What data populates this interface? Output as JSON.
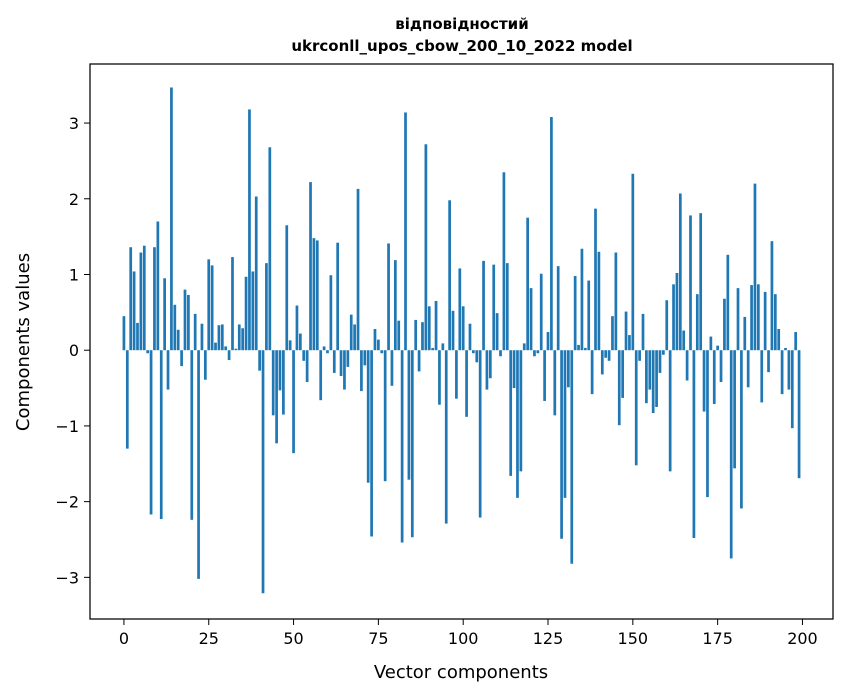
{
  "chart_data": {
    "type": "bar",
    "title_line1": "відповідностий",
    "title_line2": "ukrconll_upos_cbow_200_10_2022 model",
    "xlabel": "Vector components",
    "ylabel": "Components values",
    "xlim": [
      -10,
      209
    ],
    "ylim": [
      -3.55,
      3.78
    ],
    "xticks": [
      0,
      25,
      50,
      75,
      100,
      125,
      150,
      175,
      200
    ],
    "yticks": [
      -3,
      -2,
      -1,
      0,
      1,
      2,
      3
    ],
    "xtick_labels": [
      "0",
      "25",
      "50",
      "75",
      "100",
      "125",
      "150",
      "175",
      "200"
    ],
    "ytick_labels": [
      "−3",
      "−2",
      "−1",
      "0",
      "1",
      "2",
      "3"
    ],
    "grid": false,
    "bar_color": "#1f77b4",
    "values": [
      0.45,
      -1.3,
      1.36,
      1.04,
      0.36,
      1.29,
      1.38,
      -0.04,
      -2.17,
      1.36,
      1.7,
      -2.23,
      0.95,
      -0.52,
      3.47,
      0.6,
      0.27,
      -0.21,
      0.8,
      0.73,
      -2.24,
      0.48,
      -3.02,
      0.35,
      -0.39,
      1.2,
      1.12,
      0.1,
      0.33,
      0.34,
      0.05,
      -0.13,
      1.23,
      0.02,
      0.34,
      0.29,
      0.97,
      3.18,
      1.04,
      2.03,
      -0.27,
      -3.21,
      1.15,
      2.68,
      -0.86,
      -1.23,
      -0.53,
      -0.85,
      1.65,
      0.13,
      -1.36,
      0.59,
      0.22,
      -0.14,
      -0.42,
      2.22,
      1.48,
      1.45,
      -0.66,
      0.05,
      -0.04,
      0.99,
      -0.3,
      1.42,
      -0.34,
      -0.52,
      -0.22,
      0.47,
      0.34,
      2.13,
      -0.54,
      -0.2,
      -1.75,
      -2.46,
      0.28,
      0.14,
      -0.04,
      -1.73,
      1.41,
      -0.47,
      1.19,
      0.39,
      -2.54,
      3.14,
      -1.71,
      -2.47,
      0.4,
      -0.28,
      0.37,
      2.72,
      0.58,
      0.03,
      0.65,
      -0.72,
      0.09,
      -2.29,
      1.98,
      0.52,
      -0.64,
      1.08,
      0.58,
      -0.88,
      0.35,
      -0.04,
      -0.16,
      -2.21,
      1.18,
      -0.52,
      -0.37,
      1.13,
      0.49,
      -0.08,
      2.35,
      1.15,
      -1.66,
      -0.5,
      -1.95,
      -1.6,
      0.09,
      1.75,
      0.82,
      -0.08,
      -0.04,
      1.01,
      -0.67,
      0.24,
      3.08,
      -0.86,
      1.11,
      -2.49,
      -1.95,
      -0.49,
      -2.82,
      0.98,
      0.07,
      1.34,
      0.03,
      0.92,
      -0.58,
      1.87,
      1.3,
      -0.32,
      -0.1,
      -0.14,
      0.45,
      1.29,
      -0.99,
      -0.63,
      0.51,
      0.2,
      2.33,
      -1.52,
      -0.14,
      0.48,
      -0.7,
      -0.52,
      -0.83,
      -0.75,
      -0.3,
      -0.06,
      0.66,
      -1.6,
      0.87,
      1.02,
      2.07,
      0.26,
      -0.4,
      1.78,
      -2.48,
      0.74,
      1.81,
      -0.81,
      -1.94,
      0.18,
      -0.71,
      0.06,
      -0.42,
      0.68,
      1.26,
      -2.75,
      -1.56,
      0.82,
      -2.09,
      0.44,
      -0.49,
      0.86,
      2.2,
      0.87,
      -0.69,
      0.77,
      -0.29,
      1.44,
      0.74,
      0.28,
      -0.58,
      0.03,
      -0.52,
      -1.03,
      0.24,
      -1.69
    ]
  }
}
